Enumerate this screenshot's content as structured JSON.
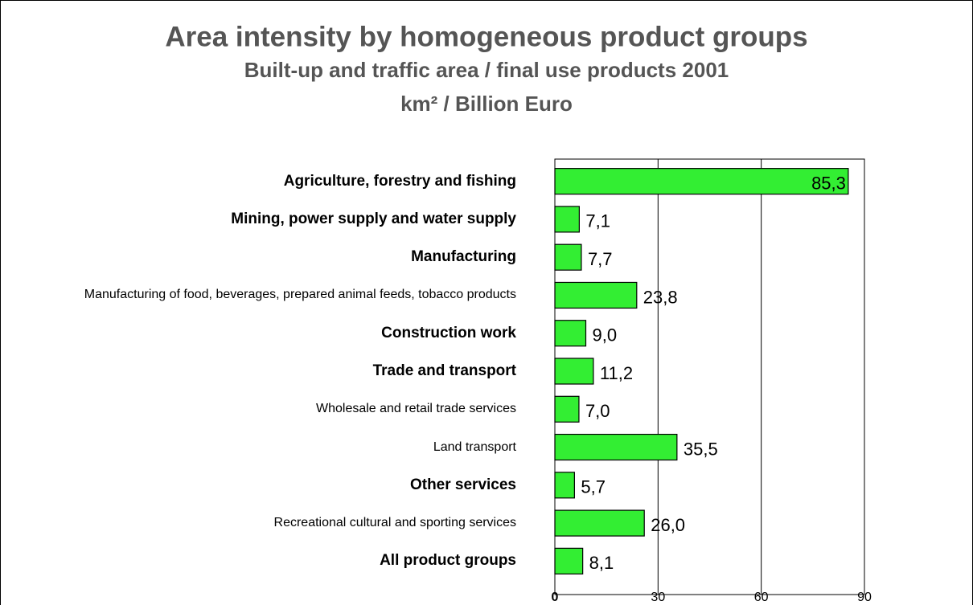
{
  "chart_data": {
    "type": "bar",
    "orientation": "horizontal",
    "title": "Area intensity by homogeneous product groups",
    "subtitle": "Built-up and traffic area / final use products 2001",
    "unit_label": "km² / Billion Euro",
    "categories": [
      "Agriculture, forestry and fishing",
      "Mining, power supply and water supply",
      "Manufacturing",
      "Manufacturing of food, beverages, prepared animal feeds, tobacco products",
      "Construction work",
      "Trade and transport",
      "Wholesale and retail trade services",
      "Land transport",
      "Other services",
      "Recreational cultural and sporting services",
      "All product groups"
    ],
    "values": [
      85.3,
      7.1,
      7.7,
      23.8,
      9.0,
      11.2,
      7.0,
      35.5,
      5.7,
      26.0,
      8.1
    ],
    "value_labels": [
      "85,3",
      "7,1",
      "7,7",
      "23,8",
      "9,0",
      "11,2",
      "7,0",
      "35,5",
      "5,7",
      "26,0",
      "8,1"
    ],
    "color": "#33ee33",
    "xlim": [
      0,
      90
    ],
    "xticks": [
      0,
      30,
      60,
      90
    ],
    "grid": true
  }
}
